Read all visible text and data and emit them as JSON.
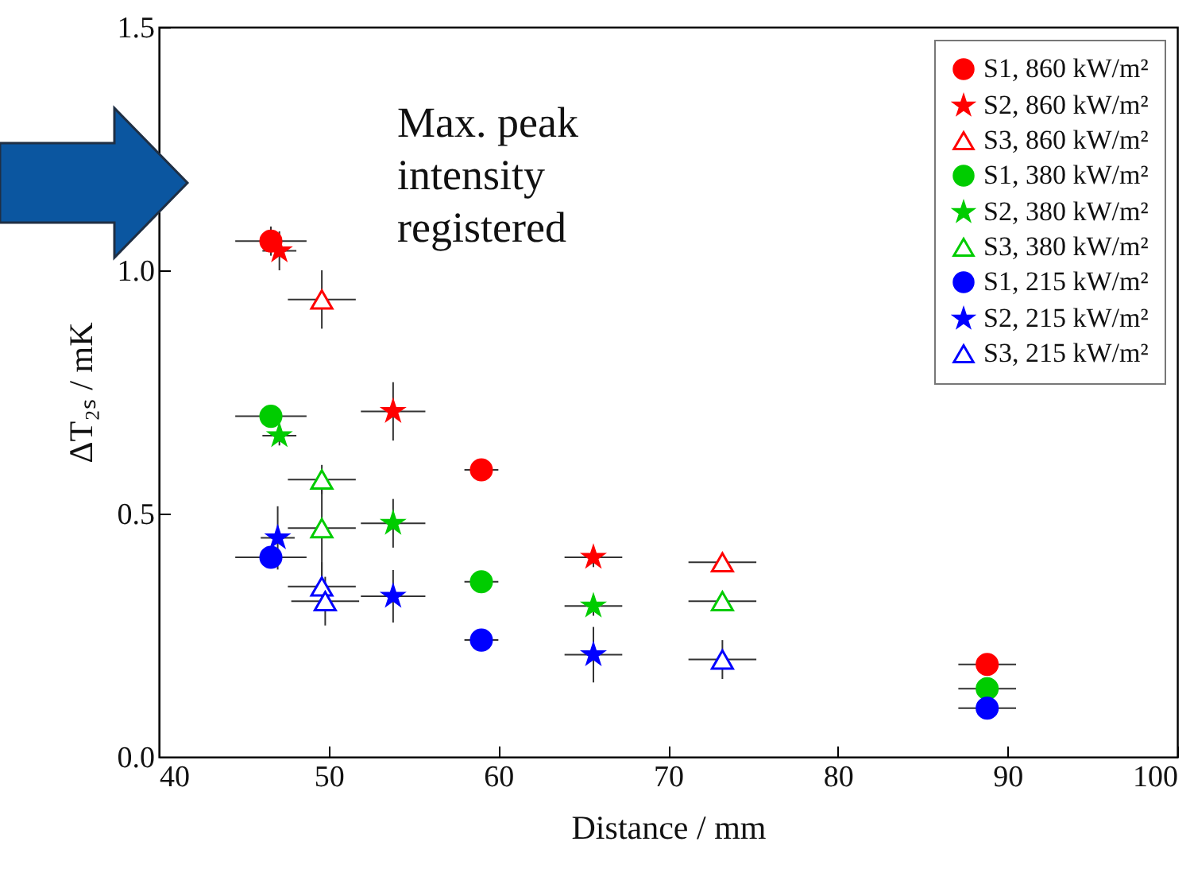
{
  "chart_data": {
    "type": "scatter",
    "xlabel": "Distance  /  mm",
    "ylabel": "ΔT₂ₛ  /  mK",
    "xlim": [
      40,
      100
    ],
    "xticks": [
      40,
      50,
      60,
      70,
      80,
      90,
      100
    ],
    "ylim": [
      0,
      1.5
    ],
    "yticks": [
      {
        "value": 0,
        "label": "0.0"
      },
      {
        "value": 0.5,
        "label": "0.5"
      },
      {
        "value": 1,
        "label": "1.0"
      },
      {
        "value": 1.5,
        "label": "1.5"
      }
    ],
    "grid": false,
    "legend": "top right",
    "annotations": [
      "Max. peak intensity registered"
    ],
    "series": [
      {
        "name": "S1, 860 kW/m²",
        "color": "#ff0000",
        "marker": "circle",
        "x": [
          46.6,
          59.0,
          88.8
        ],
        "values": [
          1.06,
          0.59,
          0.19
        ],
        "errors": [
          0.03,
          null,
          null
        ],
        "xerrors": [
          2.1,
          1.0,
          1.7
        ]
      },
      {
        "name": "S2, 860 kW/m²",
        "color": "#ff0000",
        "marker": "star",
        "x": [
          47.1,
          53.8,
          65.6
        ],
        "values": [
          1.04,
          0.71,
          0.41
        ],
        "errors": [
          0.04,
          0.06,
          0.02
        ],
        "xerrors": [
          1,
          1.9,
          1.7
        ]
      },
      {
        "name": "S3, 860 kW/m²",
        "color": "#ff0000",
        "marker": "triangle",
        "x": [
          49.6,
          73.2
        ],
        "values": [
          0.94,
          0.4
        ],
        "errors": [
          0.06,
          null
        ],
        "xerrors": [
          2,
          2
        ]
      },
      {
        "name": "S1, 380 kW/m²",
        "color": "#00cc00",
        "marker": "circle",
        "x": [
          46.6,
          59.0,
          88.8
        ],
        "xerrors": [
          2.1,
          1.0,
          1.7
        ],
        "values": [
          0.7,
          0.36,
          0.14
        ]
      },
      {
        "name": "S2, 380 kW/m²",
        "color": "#00cc00",
        "marker": "star",
        "x": [
          47.1,
          53.8,
          65.6
        ],
        "values": [
          0.66,
          0.48,
          0.31
        ],
        "errors": [
          0.02,
          0.05,
          0.02
        ],
        "xerrors": [
          1,
          1.9,
          1.7
        ]
      },
      {
        "name": "S3, 380 kW/m²",
        "color": "#00cc00",
        "marker": "triangle",
        "x": [
          49.6,
          49.6,
          73.2
        ],
        "values": [
          0.57,
          0.47,
          0.32
        ],
        "errors": [
          0.03,
          0.1,
          null
        ],
        "xerrors": [
          2,
          2,
          2
        ]
      },
      {
        "name": "S1, 215 kW/m²",
        "color": "#0000ff",
        "marker": "circle",
        "x": [
          46.6,
          59.0,
          88.8
        ],
        "values": [
          0.41,
          0.24,
          0.1
        ],
        "xerrors": [
          2.1,
          1.0,
          1.7
        ]
      },
      {
        "name": "S2, 215 kW/m²",
        "color": "#0000ff",
        "marker": "star",
        "x": [
          47.0,
          53.8,
          65.6
        ],
        "values": [
          0.45,
          0.33,
          0.21
        ],
        "errors": [
          0.065,
          0.054,
          0.057
        ],
        "xerrors": [
          1,
          1.9,
          1.7
        ]
      },
      {
        "name": "S3, 215 kW/m²",
        "color": "#0000ff",
        "marker": "triangle",
        "x": [
          49.6,
          49.8,
          73.2
        ],
        "values": [
          0.35,
          0.32,
          0.2
        ],
        "errors": [
          0.05,
          0.05,
          0.04
        ],
        "xerrors": [
          2,
          2,
          2
        ]
      }
    ]
  }
}
